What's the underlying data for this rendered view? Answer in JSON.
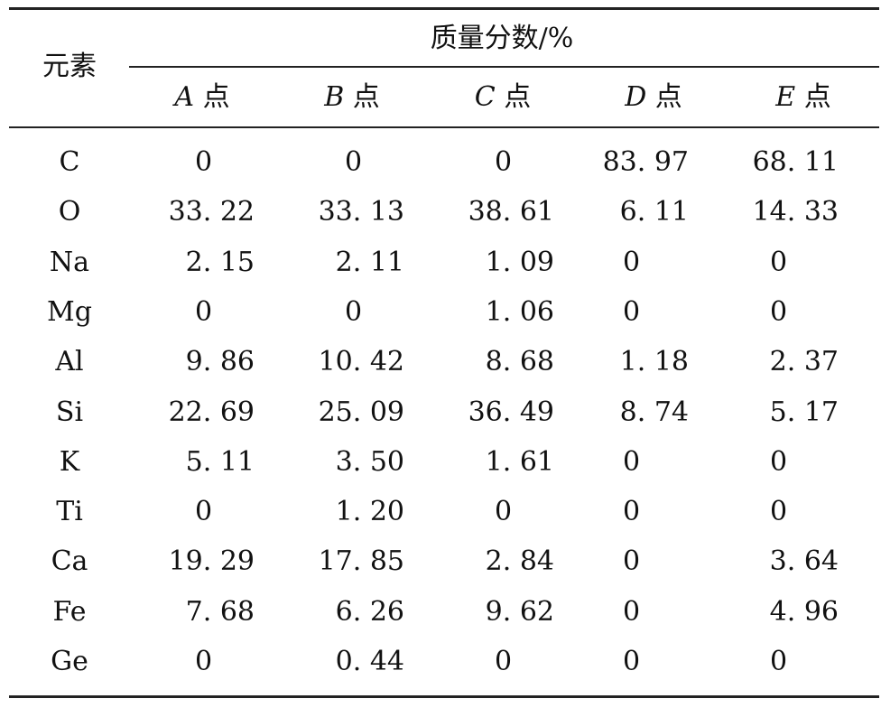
{
  "table": {
    "row_header": "元素",
    "group_header": "质量分数/%",
    "columns": [
      {
        "letter": "A",
        "suffix": " 点"
      },
      {
        "letter": "B",
        "suffix": " 点"
      },
      {
        "letter": "C",
        "suffix": " 点"
      },
      {
        "letter": "D",
        "suffix": " 点"
      },
      {
        "letter": "E",
        "suffix": " 点"
      }
    ],
    "rows": [
      {
        "element": "C",
        "values": [
          "0",
          "0",
          "0",
          "83. 97",
          "68. 11"
        ]
      },
      {
        "element": "O",
        "values": [
          "33. 22",
          "33. 13",
          "38. 61",
          "6. 11",
          "14. 33"
        ]
      },
      {
        "element": "Na",
        "values": [
          "2. 15",
          "2. 11",
          "1. 09",
          "0",
          "0"
        ]
      },
      {
        "element": "Mg",
        "values": [
          "0",
          "0",
          "1. 06",
          "0",
          "0"
        ]
      },
      {
        "element": "Al",
        "values": [
          "9. 86",
          "10. 42",
          "8. 68",
          "1. 18",
          "2. 37"
        ]
      },
      {
        "element": "Si",
        "values": [
          "22. 69",
          "25. 09",
          "36. 49",
          "8. 74",
          "5. 17"
        ]
      },
      {
        "element": "K",
        "values": [
          "5. 11",
          "3. 50",
          "1. 61",
          "0",
          "0"
        ]
      },
      {
        "element": "Ti",
        "values": [
          "0",
          "1. 20",
          "0",
          "0",
          "0"
        ]
      },
      {
        "element": "Ca",
        "values": [
          "19. 29",
          "17. 85",
          "2. 84",
          "0",
          "3. 64"
        ]
      },
      {
        "element": "Fe",
        "values": [
          "7. 68",
          "6. 26",
          "9. 62",
          "0",
          "4. 96"
        ]
      },
      {
        "element": "Ge",
        "values": [
          "0",
          "0. 44",
          "0",
          "0",
          "0"
        ]
      }
    ]
  }
}
